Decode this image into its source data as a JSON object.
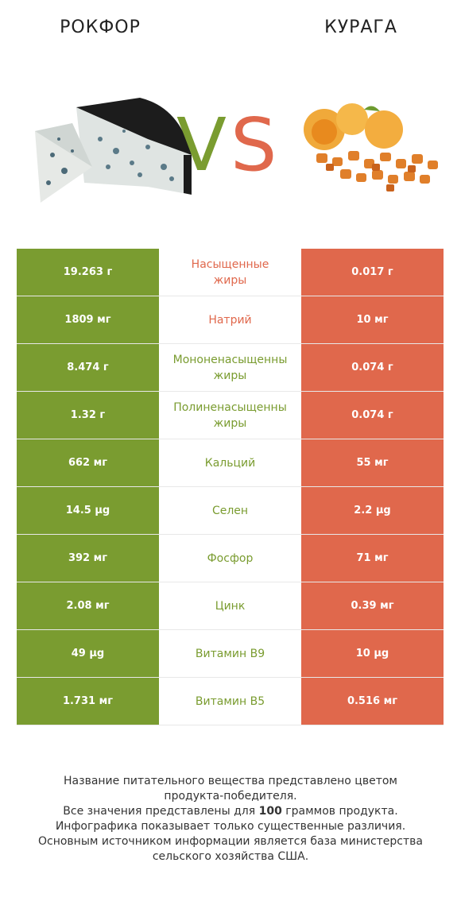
{
  "left_title": "РОКФОР",
  "right_title": "КУРАГА",
  "vs": {
    "v": "V",
    "s": "S"
  },
  "colors": {
    "left": "#7a9c30",
    "right": "#e0684c"
  },
  "rows": [
    {
      "left": "19.263 г",
      "label": "Насыщенные\nжиры",
      "right": "0.017 г",
      "winner": "right"
    },
    {
      "left": "1809 мг",
      "label": "Натрий",
      "right": "10 мг",
      "winner": "right"
    },
    {
      "left": "8.474 г",
      "label": "Мононенасыщенны\nжиры",
      "right": "0.074 г",
      "winner": "left"
    },
    {
      "left": "1.32 г",
      "label": "Полиненасыщенны\nжиры",
      "right": "0.074 г",
      "winner": "left"
    },
    {
      "left": "662 мг",
      "label": "Кальций",
      "right": "55 мг",
      "winner": "left"
    },
    {
      "left": "14.5 µg",
      "label": "Селен",
      "right": "2.2 µg",
      "winner": "left"
    },
    {
      "left": "392 мг",
      "label": "Фосфор",
      "right": "71 мг",
      "winner": "left"
    },
    {
      "left": "2.08 мг",
      "label": "Цинк",
      "right": "0.39 мг",
      "winner": "left"
    },
    {
      "left": "49 µg",
      "label": "Витамин B9",
      "right": "10 µg",
      "winner": "left"
    },
    {
      "left": "1.731 мг",
      "label": "Витамин B5",
      "right": "0.516 мг",
      "winner": "left"
    }
  ],
  "footer": {
    "line1": "Название питательного вещества представлено цветом",
    "line2": "продукта-победителя.",
    "line3_a": "Все значения представлены для ",
    "line3_b": "100",
    "line3_c": " граммов продукта.",
    "line4": "Инфографика показывает только существенные различия.",
    "line5": "Основным источником информации является база министерства",
    "line6": "сельского хозяйства США."
  }
}
